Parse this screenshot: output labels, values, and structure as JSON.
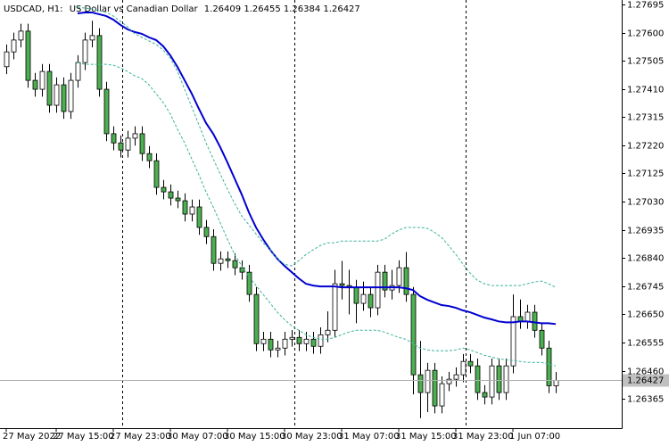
{
  "chart_data": {
    "type": "candlestick",
    "symbol": "USDCAD, H1:",
    "description": "US Dollar vs Canadian Dollar",
    "bull_color": "#ffffff",
    "bear_color": "#4caf50",
    "categories": [
      "27 May 2022",
      null,
      null,
      null,
      null,
      null,
      null,
      "27 May 15:00",
      null,
      null,
      null,
      null,
      null,
      null,
      null,
      "27 May 23:00",
      null,
      null,
      null,
      null,
      null,
      null,
      null,
      "30 May 07:00",
      null,
      null,
      null,
      null,
      null,
      null,
      null,
      "30 May 15:00",
      null,
      null,
      null,
      null,
      null,
      null,
      null,
      "30 May 23:00",
      null,
      null,
      null,
      null,
      null,
      null,
      null,
      "31 May 07:00",
      null,
      null,
      null,
      null,
      null,
      null,
      null,
      "31 May 15:00",
      null,
      null,
      null,
      null,
      null,
      null,
      null,
      "31 May 23:00",
      null,
      null,
      null,
      null,
      null,
      null,
      null,
      "1 Jun 07:00",
      null,
      null,
      null,
      null,
      null,
      null
    ],
    "open": [
      1.27485,
      1.27535,
      1.27575,
      1.27605,
      1.27439,
      1.27409,
      1.27469,
      1.27355,
      1.27424,
      1.27334,
      1.27439,
      1.27499,
      1.27575,
      1.2759,
      1.27409,
      1.27259,
      1.27228,
      1.27204,
      1.27244,
      1.27259,
      1.27192,
      1.27168,
      1.27078,
      1.27063,
      1.27042,
      1.27033,
      1.26988,
      1.27012,
      1.26943,
      1.26912,
      1.26822,
      1.26837,
      1.26831,
      1.26807,
      1.26792,
      1.26717,
      1.26551,
      1.26566,
      1.2653,
      1.26536,
      1.26566,
      1.26572,
      1.26551,
      1.26566,
      1.26542,
      1.26581,
      1.26596,
      1.26753,
      1.26747,
      1.26741,
      1.26687,
      1.26717,
      1.26672,
      1.26792,
      1.26732,
      1.26747,
      1.26807,
      1.26717,
      1.26446,
      1.26386,
      1.26461,
      1.26341,
      1.26416,
      1.26431,
      1.26446,
      1.26491,
      1.26476,
      1.26386,
      1.26371,
      1.26476,
      1.26386,
      1.26476,
      1.26642,
      1.26626,
      1.26657,
      1.26596,
      1.26536,
      1.26409
    ],
    "high": [
      1.2756,
      1.276,
      1.2763,
      1.2763,
      1.27464,
      1.27494,
      1.27494,
      1.27449,
      1.27449,
      1.27464,
      1.27524,
      1.276,
      1.2764,
      1.27615,
      1.27434,
      1.27284,
      1.27253,
      1.27269,
      1.27284,
      1.27284,
      1.27217,
      1.27193,
      1.27103,
      1.27088,
      1.27067,
      1.27058,
      1.27037,
      1.27037,
      1.26968,
      1.26937,
      1.26862,
      1.26862,
      1.26856,
      1.26832,
      1.26817,
      1.26742,
      1.26591,
      1.26591,
      1.26561,
      1.26591,
      1.26597,
      1.26597,
      1.26591,
      1.26591,
      1.26606,
      1.2666,
      1.268,
      1.2683,
      1.268,
      1.26766,
      1.2676,
      1.26742,
      1.26817,
      1.26817,
      1.268,
      1.26832,
      1.2686,
      1.26742,
      1.2656,
      1.26486,
      1.26486,
      1.26441,
      1.26456,
      1.26471,
      1.26516,
      1.26516,
      1.26501,
      1.26411,
      1.26501,
      1.26501,
      1.26501,
      1.26717,
      1.267,
      1.26682,
      1.26682,
      1.26621,
      1.26561,
      1.26455
    ],
    "low": [
      1.2746,
      1.2751,
      1.2755,
      1.27414,
      1.27384,
      1.27384,
      1.2733,
      1.2733,
      1.27309,
      1.27309,
      1.27414,
      1.27474,
      1.2755,
      1.27384,
      1.27234,
      1.27203,
      1.27179,
      1.27179,
      1.27219,
      1.27167,
      1.27143,
      1.27053,
      1.27038,
      1.27017,
      1.27008,
      1.26963,
      1.26963,
      1.26918,
      1.26887,
      1.26797,
      1.26797,
      1.26806,
      1.26782,
      1.26767,
      1.26692,
      1.26526,
      1.26526,
      1.26505,
      1.26505,
      1.26511,
      1.26541,
      1.26526,
      1.26526,
      1.26517,
      1.26517,
      1.26556,
      1.26571,
      1.267,
      1.2665,
      1.2662,
      1.26662,
      1.2664,
      1.26647,
      1.26707,
      1.267,
      1.26722,
      1.26692,
      1.2638,
      1.263,
      1.2632,
      1.26316,
      1.26316,
      1.26391,
      1.26406,
      1.26421,
      1.26451,
      1.26361,
      1.26346,
      1.26346,
      1.26361,
      1.26361,
      1.26451,
      1.26601,
      1.26601,
      1.26571,
      1.26511,
      1.26384,
      1.26384
    ],
    "close": [
      1.27535,
      1.27575,
      1.27605,
      1.27439,
      1.27409,
      1.27469,
      1.27355,
      1.27424,
      1.27334,
      1.27439,
      1.27499,
      1.27575,
      1.2759,
      1.27409,
      1.27259,
      1.27228,
      1.27204,
      1.27244,
      1.27259,
      1.27192,
      1.27168,
      1.27078,
      1.27063,
      1.27042,
      1.27033,
      1.26988,
      1.27012,
      1.26943,
      1.26912,
      1.26822,
      1.26837,
      1.26831,
      1.26807,
      1.26792,
      1.26717,
      1.26551,
      1.26566,
      1.2653,
      1.26536,
      1.26566,
      1.26572,
      1.26551,
      1.26566,
      1.26542,
      1.26581,
      1.26596,
      1.26753,
      1.26747,
      1.26741,
      1.26687,
      1.26717,
      1.26672,
      1.26792,
      1.26732,
      1.26747,
      1.26807,
      1.26717,
      1.26446,
      1.26386,
      1.26461,
      1.26341,
      1.26416,
      1.26431,
      1.26446,
      1.26491,
      1.26476,
      1.26386,
      1.26371,
      1.26476,
      1.26386,
      1.26476,
      1.26642,
      1.26626,
      1.26657,
      1.26596,
      1.26536,
      1.26409,
      1.26427
    ],
    "lines": [
      {
        "color": "#0000d0",
        "dashed": false,
        "values": [
          null,
          null,
          null,
          null,
          null,
          null,
          null,
          null,
          null,
          null,
          1.27665,
          1.27668,
          1.27668,
          1.27662,
          1.27656,
          1.27644,
          1.27626,
          1.27611,
          1.27602,
          1.27596,
          1.27584,
          1.27575,
          1.27554,
          1.27523,
          1.27484,
          1.27439,
          1.27394,
          1.27343,
          1.27295,
          1.27259,
          1.27213,
          1.27162,
          1.27108,
          1.27054,
          1.26994,
          1.26943,
          1.26903,
          1.26867,
          1.26837,
          1.26813,
          1.26792,
          1.26771,
          1.26753,
          1.26747,
          1.26744,
          1.26744,
          1.26744,
          1.26741,
          1.26741,
          1.26741,
          1.26741,
          1.26741,
          1.26741,
          1.26741,
          1.26741,
          1.26741,
          1.26738,
          1.26732,
          1.26711,
          1.26699,
          1.2669,
          1.26681,
          1.26678,
          1.26672,
          1.26663,
          1.26657,
          1.26648,
          1.26639,
          1.26633,
          1.26626,
          1.26623,
          1.26623,
          1.26626,
          1.26626,
          1.26623,
          1.2662,
          1.2662,
          1.26617
        ]
      },
      {
        "color": "#3cb39a",
        "dashed": true,
        "values": [
          null,
          null,
          null,
          null,
          null,
          null,
          null,
          null,
          null,
          null,
          1.27686,
          1.27683,
          1.2768,
          1.27674,
          1.27668,
          1.27656,
          1.27638,
          1.2762,
          1.27596,
          1.27584,
          1.27572,
          1.2756,
          1.27541,
          1.27514,
          1.27469,
          1.27409,
          1.27349,
          1.27289,
          1.27228,
          1.27174,
          1.27123,
          1.27072,
          1.27024,
          1.26982,
          1.26952,
          1.26921,
          1.26891,
          1.26867,
          1.26837,
          1.26819,
          1.26813,
          1.26831,
          1.26852,
          1.26867,
          1.26882,
          1.26891,
          1.26891,
          1.26897,
          1.26897,
          1.26897,
          1.26897,
          1.26897,
          1.26897,
          1.26903,
          1.26921,
          1.26934,
          1.26943,
          1.26943,
          1.26943,
          1.2694,
          1.26927,
          1.26909,
          1.26882,
          1.26852,
          1.26819,
          1.26789,
          1.26765,
          1.26753,
          1.26747,
          1.26747,
          1.26747,
          1.26747,
          1.26747,
          1.26753,
          1.26759,
          1.26762,
          1.26753,
          1.26741
        ]
      },
      {
        "color": "#3cb39a",
        "dashed": true,
        "values": [
          null,
          null,
          null,
          null,
          null,
          null,
          null,
          null,
          null,
          null,
          1.27499,
          1.27493,
          1.27493,
          1.27493,
          1.27493,
          1.2749,
          1.27481,
          1.27469,
          1.27454,
          1.27445,
          1.27424,
          1.27394,
          1.27364,
          1.27325,
          1.27274,
          1.27228,
          1.27174,
          1.2712,
          1.27063,
          1.27012,
          1.26958,
          1.26903,
          1.26852,
          1.26813,
          1.26777,
          1.26747,
          1.26717,
          1.26687,
          1.26657,
          1.26632,
          1.26611,
          1.26596,
          1.26581,
          1.26572,
          1.26566,
          1.26566,
          1.26572,
          1.26581,
          1.2659,
          1.26596,
          1.26596,
          1.26596,
          1.26596,
          1.2659,
          1.26581,
          1.26572,
          1.26566,
          1.26551,
          1.26536,
          1.2653,
          1.26527,
          1.26527,
          1.26527,
          1.2653,
          1.26536,
          1.2653,
          1.26521,
          1.26512,
          1.26506,
          1.265,
          1.26497,
          1.26494,
          1.26491,
          1.26488,
          1.26488,
          1.26488,
          1.26482,
          1.26476
        ]
      }
    ],
    "ylim": [
      1.26266,
      1.2771
    ],
    "yticks": [
      1.27695,
      {
        "value": 1.276,
        "label": "1.27600"
      },
      1.27505,
      {
        "value": 1.2741,
        "label": "1.27410"
      },
      1.27315,
      {
        "value": 1.2722,
        "label": "1.27220"
      },
      1.27125,
      {
        "value": 1.2703,
        "label": "1.27030"
      },
      1.26935,
      {
        "value": 1.2684,
        "label": "1.26840"
      },
      1.26745,
      {
        "value": 1.2665,
        "label": "1.26650"
      },
      1.26555,
      {
        "value": 1.2646,
        "label": "1.26460"
      },
      1.26365
    ],
    "grid": false
  }
}
